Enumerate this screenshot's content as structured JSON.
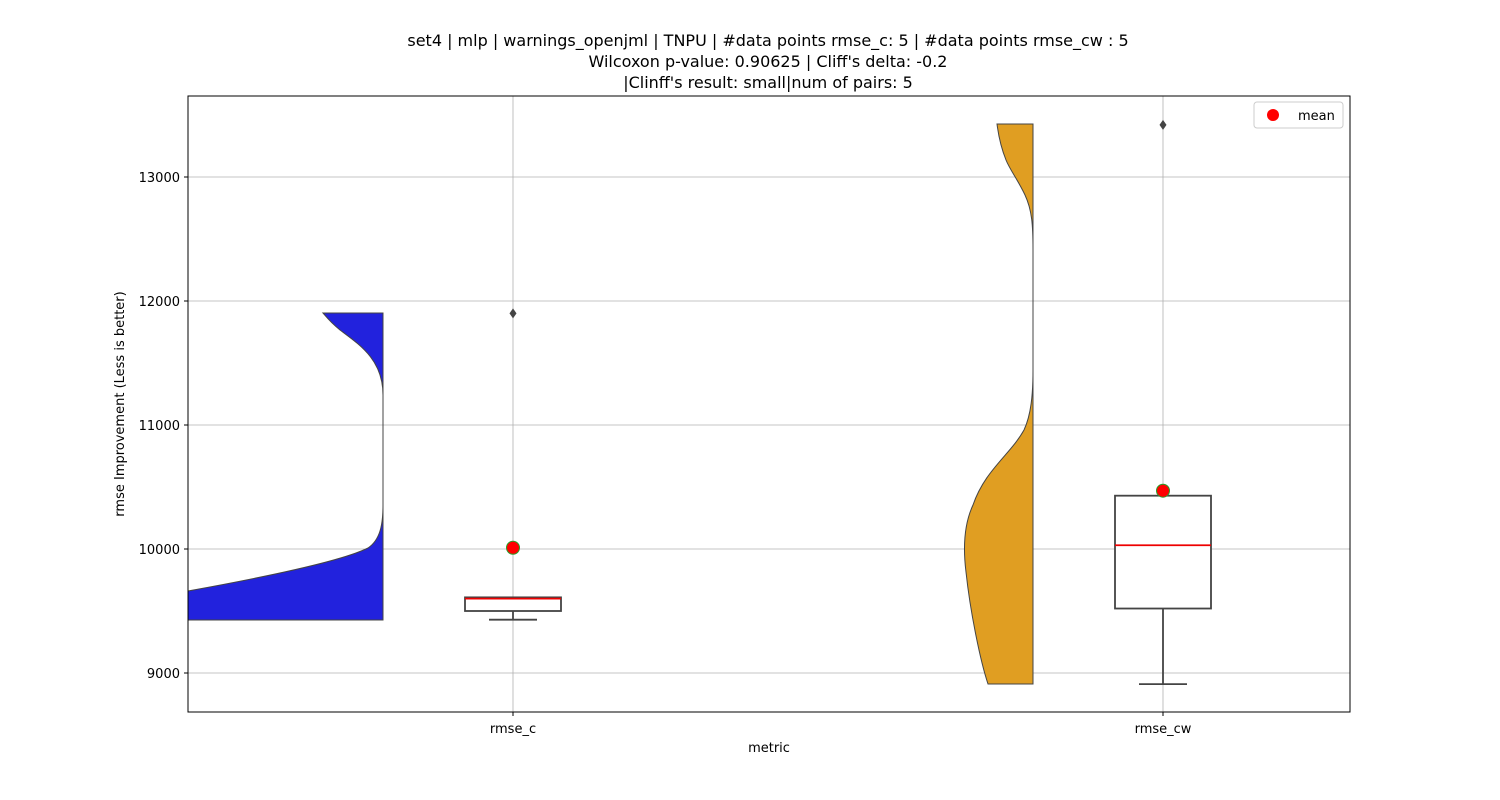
{
  "chart_data": {
    "type": "violin+box",
    "title": [
      "set4 | mlp | warnings_openjml | TNPU | #data points rmse_c: 5 | #data points rmse_cw : 5",
      "Wilcoxon p-value: 0.90625 | Cliff's delta: -0.2",
      "|Clinff's result: small|num of pairs: 5"
    ],
    "xlabel": "metric",
    "ylabel": "rmse Improvement (Less is better)",
    "ylim": [
      8680,
      13640
    ],
    "yticks": [
      9000,
      10000,
      11000,
      12000,
      13000
    ],
    "grid": true,
    "legend": {
      "position": "top-right",
      "label": "mean",
      "color": "#ff0000"
    },
    "categories": [
      "rmse_c",
      "rmse_cw"
    ],
    "series": [
      {
        "category": "rmse_c",
        "violin_color": "#2222dd",
        "violin_min": 9430,
        "violin_max": 11900,
        "box": {
          "whisker_low": 9430,
          "q1": 9500,
          "median": 9600,
          "q3": 9610,
          "whisker_high": 9610
        },
        "mean": 10010,
        "outliers": [
          11900
        ]
      },
      {
        "category": "rmse_cw",
        "violin_color": "#e09e22",
        "violin_min": 8910,
        "violin_max": 13420,
        "box": {
          "whisker_low": 8910,
          "q1": 9520,
          "median": 10030,
          "q3": 10430,
          "whisker_high": 10430
        },
        "mean": 10470,
        "outliers": [
          13420
        ]
      }
    ]
  }
}
